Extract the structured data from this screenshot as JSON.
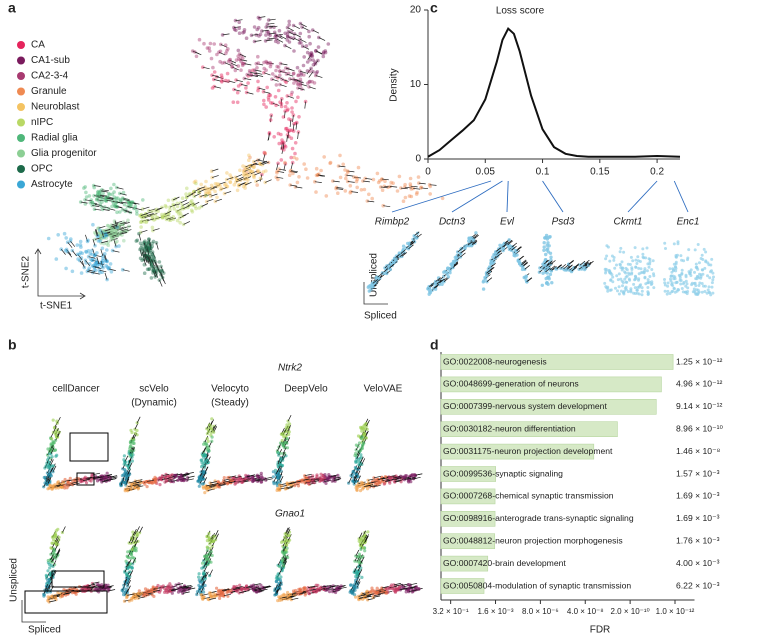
{
  "panel_labels": [
    "a",
    "b",
    "c",
    "d"
  ],
  "panel_a": {
    "legend": [
      {
        "name": "CA",
        "color": "#e5245c"
      },
      {
        "name": "CA1-sub",
        "color": "#7a1b5d"
      },
      {
        "name": "CA2-3-4",
        "color": "#a83a70"
      },
      {
        "name": "Granule",
        "color": "#ef8a52"
      },
      {
        "name": "Neuroblast",
        "color": "#f4c362"
      },
      {
        "name": "nIPC",
        "color": "#b9d865"
      },
      {
        "name": "Radial glia",
        "color": "#4fb77a"
      },
      {
        "name": "Glia progenitor",
        "color": "#8ccf94"
      },
      {
        "name": "OPC",
        "color": "#1d6a4a"
      },
      {
        "name": "Astrocyte",
        "color": "#3aa7d6"
      }
    ],
    "x_label": "t-SNE1",
    "y_label": "t-SNE2"
  },
  "panel_b": {
    "genes": [
      "Ntrk2",
      "Gnao1"
    ],
    "methods": [
      [
        "cellDancer"
      ],
      [
        "scVelo",
        "(Dynamic)"
      ],
      [
        "Velocyto",
        "(Steady)"
      ],
      [
        "DeepVelo"
      ],
      [
        "VeloVAE"
      ]
    ],
    "y_label": "Unspliced",
    "x_label": "Spliced"
  },
  "chart_data": [
    {
      "type": "line",
      "title": "Loss score",
      "ylabel": "Density",
      "x": [
        0,
        0.01,
        0.02,
        0.03,
        0.04,
        0.05,
        0.06,
        0.065,
        0.07,
        0.075,
        0.08,
        0.09,
        0.1,
        0.11,
        0.12,
        0.13,
        0.14,
        0.16,
        0.18,
        0.2,
        0.22
      ],
      "values": [
        0.3,
        1.2,
        2.5,
        3.8,
        5.2,
        8,
        13,
        16,
        17.5,
        16.8,
        14.5,
        8.5,
        4,
        1.6,
        0.7,
        0.4,
        0.3,
        0.3,
        0.3,
        0.4,
        0.3
      ],
      "color": "#111111",
      "xlim": [
        0,
        0.22
      ],
      "ylim": [
        0,
        20
      ],
      "xticks": [
        0,
        0.05,
        0.1,
        0.15,
        0.2
      ],
      "yticks": [
        0,
        10,
        20
      ],
      "genes": [
        {
          "name": "Rimbp2",
          "loss": 0.055
        },
        {
          "name": "Dctn3",
          "loss": 0.065
        },
        {
          "name": "Evl",
          "loss": 0.07
        },
        {
          "name": "Psd3",
          "loss": 0.1
        },
        {
          "name": "Ckmt1",
          "loss": 0.2
        },
        {
          "name": "Enc1",
          "loss": 0.215
        }
      ],
      "thumb_ylabel": "Unspliced",
      "thumb_xlabel": "Spliced"
    },
    {
      "type": "bar",
      "orientation": "horizontal",
      "categories": [
        "GO:0022008-neurogenesis",
        "GO:0048699-generation of neurons",
        "GO:0007399-nervous system development",
        "GO:0030182-neuron differentiation",
        "GO:0031175-neuron projection development",
        "GO:0099536-synaptic signaling",
        "GO:0007268-chemical synaptic transmission",
        "GO:0098916-anterograde trans-synaptic signaling",
        "GO:0048812-neuron projection morphogenesis",
        "GO:0007420-brain development",
        "GO:0050804-modulation of synaptic transmission"
      ],
      "values": [
        1.25e-12,
        4.96e-12,
        9.14e-12,
        8.96e-10,
        1.46e-08,
        0.00157,
        0.00169,
        0.00169,
        0.00176,
        0.004,
        0.00622
      ],
      "value_labels": [
        "1.25 × 10⁻¹²",
        "4.96 × 10⁻¹²",
        "9.14 × 10⁻¹²",
        "8.96 × 10⁻¹⁰",
        "1.46 × 10⁻⁸",
        "1.57 × 10⁻³",
        "1.69 × 10⁻³",
        "1.69 × 10⁻³",
        "1.76 × 10⁻³",
        "4.00 × 10⁻³",
        "6.22 × 10⁻³"
      ],
      "color": "#d6e9c6",
      "xlabel": "FDR",
      "xscale": "log",
      "xlim": [
        1,
        1e-13
      ],
      "xticks": [
        {
          "value": 0.32,
          "label": "3.2 × 10⁻¹"
        },
        {
          "value": 0.0016,
          "label": "1.6 × 10⁻³"
        },
        {
          "value": 8e-06,
          "label": "8.0 × 10⁻⁶"
        },
        {
          "value": 4e-08,
          "label": "4.0 × 10⁻⁸"
        },
        {
          "value": 2e-10,
          "label": "2.0 × 10⁻¹⁰"
        },
        {
          "value": 1e-12,
          "label": "1.0 × 10⁻¹²"
        }
      ]
    }
  ]
}
